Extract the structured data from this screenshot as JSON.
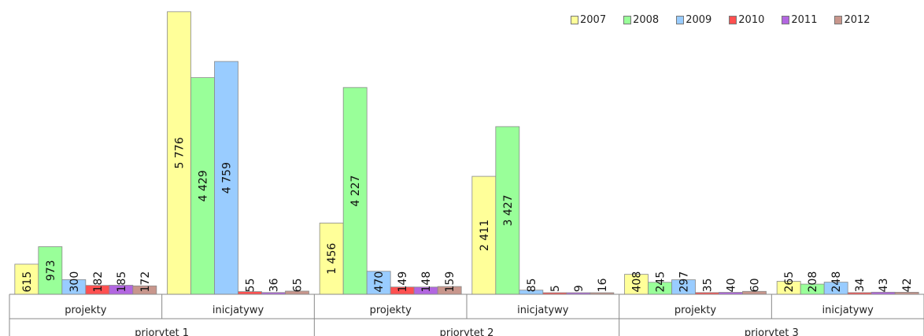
{
  "chart_data": {
    "type": "bar",
    "groups": [
      {
        "name": "priorytet 1",
        "subcategories": [
          "projekty",
          "inicjatywy"
        ]
      },
      {
        "name": "priorytet 2",
        "subcategories": [
          "projekty",
          "inicjatywy"
        ]
      },
      {
        "name": "priorytet 3",
        "subcategories": [
          "projekty",
          "inicjatywy"
        ]
      }
    ],
    "categories": [
      "priorytet 1 / projekty",
      "priorytet 1 / inicjatywy",
      "priorytet 2 / projekty",
      "priorytet 2 / inicjatywy",
      "priorytet 3 / projekty",
      "priorytet 3 / inicjatywy"
    ],
    "series": [
      {
        "name": "2007",
        "color": "#FFFF99",
        "values": [
          615,
          5776,
          1456,
          2411,
          408,
          265
        ],
        "labels": [
          "615",
          "5 776",
          "1 456",
          "2 411",
          "408",
          "265"
        ]
      },
      {
        "name": "2008",
        "color": "#99FF99",
        "values": [
          973,
          4429,
          4227,
          3427,
          245,
          208
        ],
        "labels": [
          "973",
          "4 429",
          "4 227",
          "3 427",
          "245",
          "208"
        ]
      },
      {
        "name": "2009",
        "color": "#99CCFF",
        "values": [
          300,
          4759,
          470,
          85,
          297,
          248
        ],
        "labels": [
          "300",
          "4 759",
          "470",
          "85",
          "297",
          "248"
        ]
      },
      {
        "name": "2010",
        "color": "#FF5050",
        "values": [
          182,
          55,
          149,
          5,
          35,
          34
        ],
        "labels": [
          "182",
          "55",
          "149",
          "5",
          "35",
          "34"
        ]
      },
      {
        "name": "2011",
        "color": "#B266E0",
        "values": [
          185,
          36,
          148,
          9,
          40,
          43
        ],
        "labels": [
          "185",
          "36",
          "148",
          "9",
          "40",
          "43"
        ]
      },
      {
        "name": "2012",
        "color": "#C8968C",
        "values": [
          172,
          65,
          159,
          16,
          60,
          42
        ],
        "labels": [
          "172",
          "65",
          "159",
          "16",
          "60",
          "42"
        ]
      }
    ],
    "ylim": [
      0,
      6000
    ],
    "legend": "top-right",
    "grid": false,
    "title": "",
    "xlabel": "",
    "ylabel": ""
  }
}
